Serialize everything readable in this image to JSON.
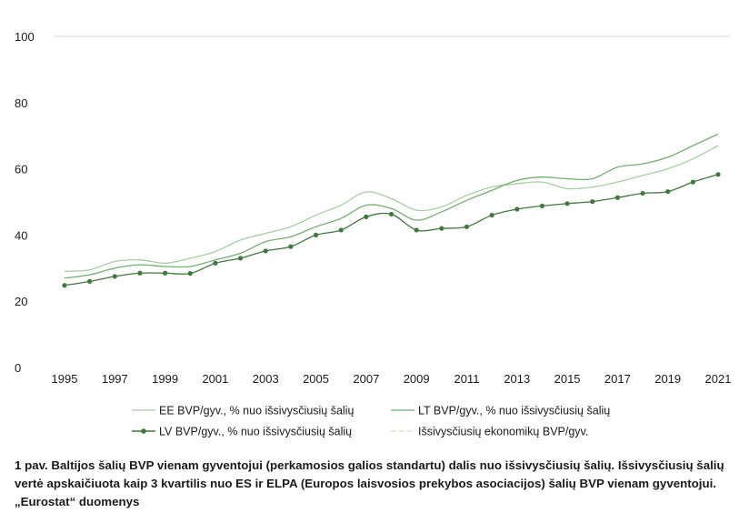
{
  "chart_data": {
    "type": "line",
    "title": "",
    "xlabel": "",
    "ylabel": "",
    "ylim": [
      0,
      100
    ],
    "yticks": [
      0,
      20,
      40,
      60,
      80,
      100
    ],
    "xticks": [
      1995,
      1997,
      1999,
      2001,
      2003,
      2005,
      2007,
      2009,
      2011,
      2013,
      2015,
      2017,
      2019,
      2021
    ],
    "x": [
      1995,
      1996,
      1997,
      1998,
      1999,
      2000,
      2001,
      2002,
      2003,
      2004,
      2005,
      2006,
      2007,
      2008,
      2009,
      2010,
      2011,
      2012,
      2013,
      2014,
      2015,
      2016,
      2017,
      2018,
      2019,
      2020,
      2021
    ],
    "series": [
      {
        "name": "EE BVP/gyv., % nuo išsivysčiusių šalių",
        "color": "#a5d0a0",
        "marker": false,
        "values": [
          29.0,
          29.5,
          32.0,
          32.5,
          31.5,
          33.0,
          35.0,
          38.5,
          40.5,
          42.5,
          46.0,
          49.0,
          53.0,
          51.0,
          47.5,
          48.5,
          52.0,
          54.5,
          55.5,
          56.0,
          54.0,
          54.5,
          56.0,
          58.0,
          60.0,
          63.0,
          67.0
        ]
      },
      {
        "name": "LT BVP/gyv., % nuo išsivysčiusių šalių",
        "color": "#72b06d",
        "marker": false,
        "values": [
          27.0,
          28.0,
          30.0,
          31.0,
          30.5,
          30.5,
          32.5,
          34.5,
          38.0,
          39.5,
          42.5,
          45.0,
          49.0,
          48.0,
          44.5,
          47.0,
          50.5,
          53.5,
          56.5,
          57.5,
          57.0,
          57.0,
          60.5,
          61.5,
          63.5,
          67.0,
          70.5
        ]
      },
      {
        "name": "LV BVP/gyv., % nuo išsivysčiusių šalių",
        "color": "#3f7a3c",
        "marker": true,
        "values": [
          24.8,
          26.0,
          27.5,
          28.5,
          28.5,
          28.4,
          31.5,
          33.0,
          35.2,
          36.5,
          40.0,
          41.5,
          45.5,
          46.3,
          41.5,
          42.0,
          42.5,
          46.0,
          47.8,
          48.8,
          49.5,
          50.1,
          51.3,
          52.6,
          53.1,
          56.0,
          58.3
        ]
      },
      {
        "name": "Išsivysčiusių ekonomikų BVP/gyv.",
        "color": "#cfe3c6",
        "marker": false,
        "values": [
          100,
          100,
          100,
          100,
          100,
          100,
          100,
          100,
          100,
          100,
          100,
          100,
          100,
          100,
          100,
          100,
          100,
          100,
          100,
          100,
          100,
          100,
          100,
          100,
          100,
          100,
          100
        ]
      }
    ],
    "legend": "bottom"
  },
  "caption": "1 pav. Baltijos šalių BVP vienam gyventojui (perkamosios galios standartu) dalis nuo išsivysčiusių šalių. Išsivysčiusių šalių vertė apskaičiuota kaip 3 kvartilis nuo ES ir ELPA (Europos laisvosios prekybos asociacijos) šalių BVP vienam gyventojui. „Eurostat“ duomenys"
}
